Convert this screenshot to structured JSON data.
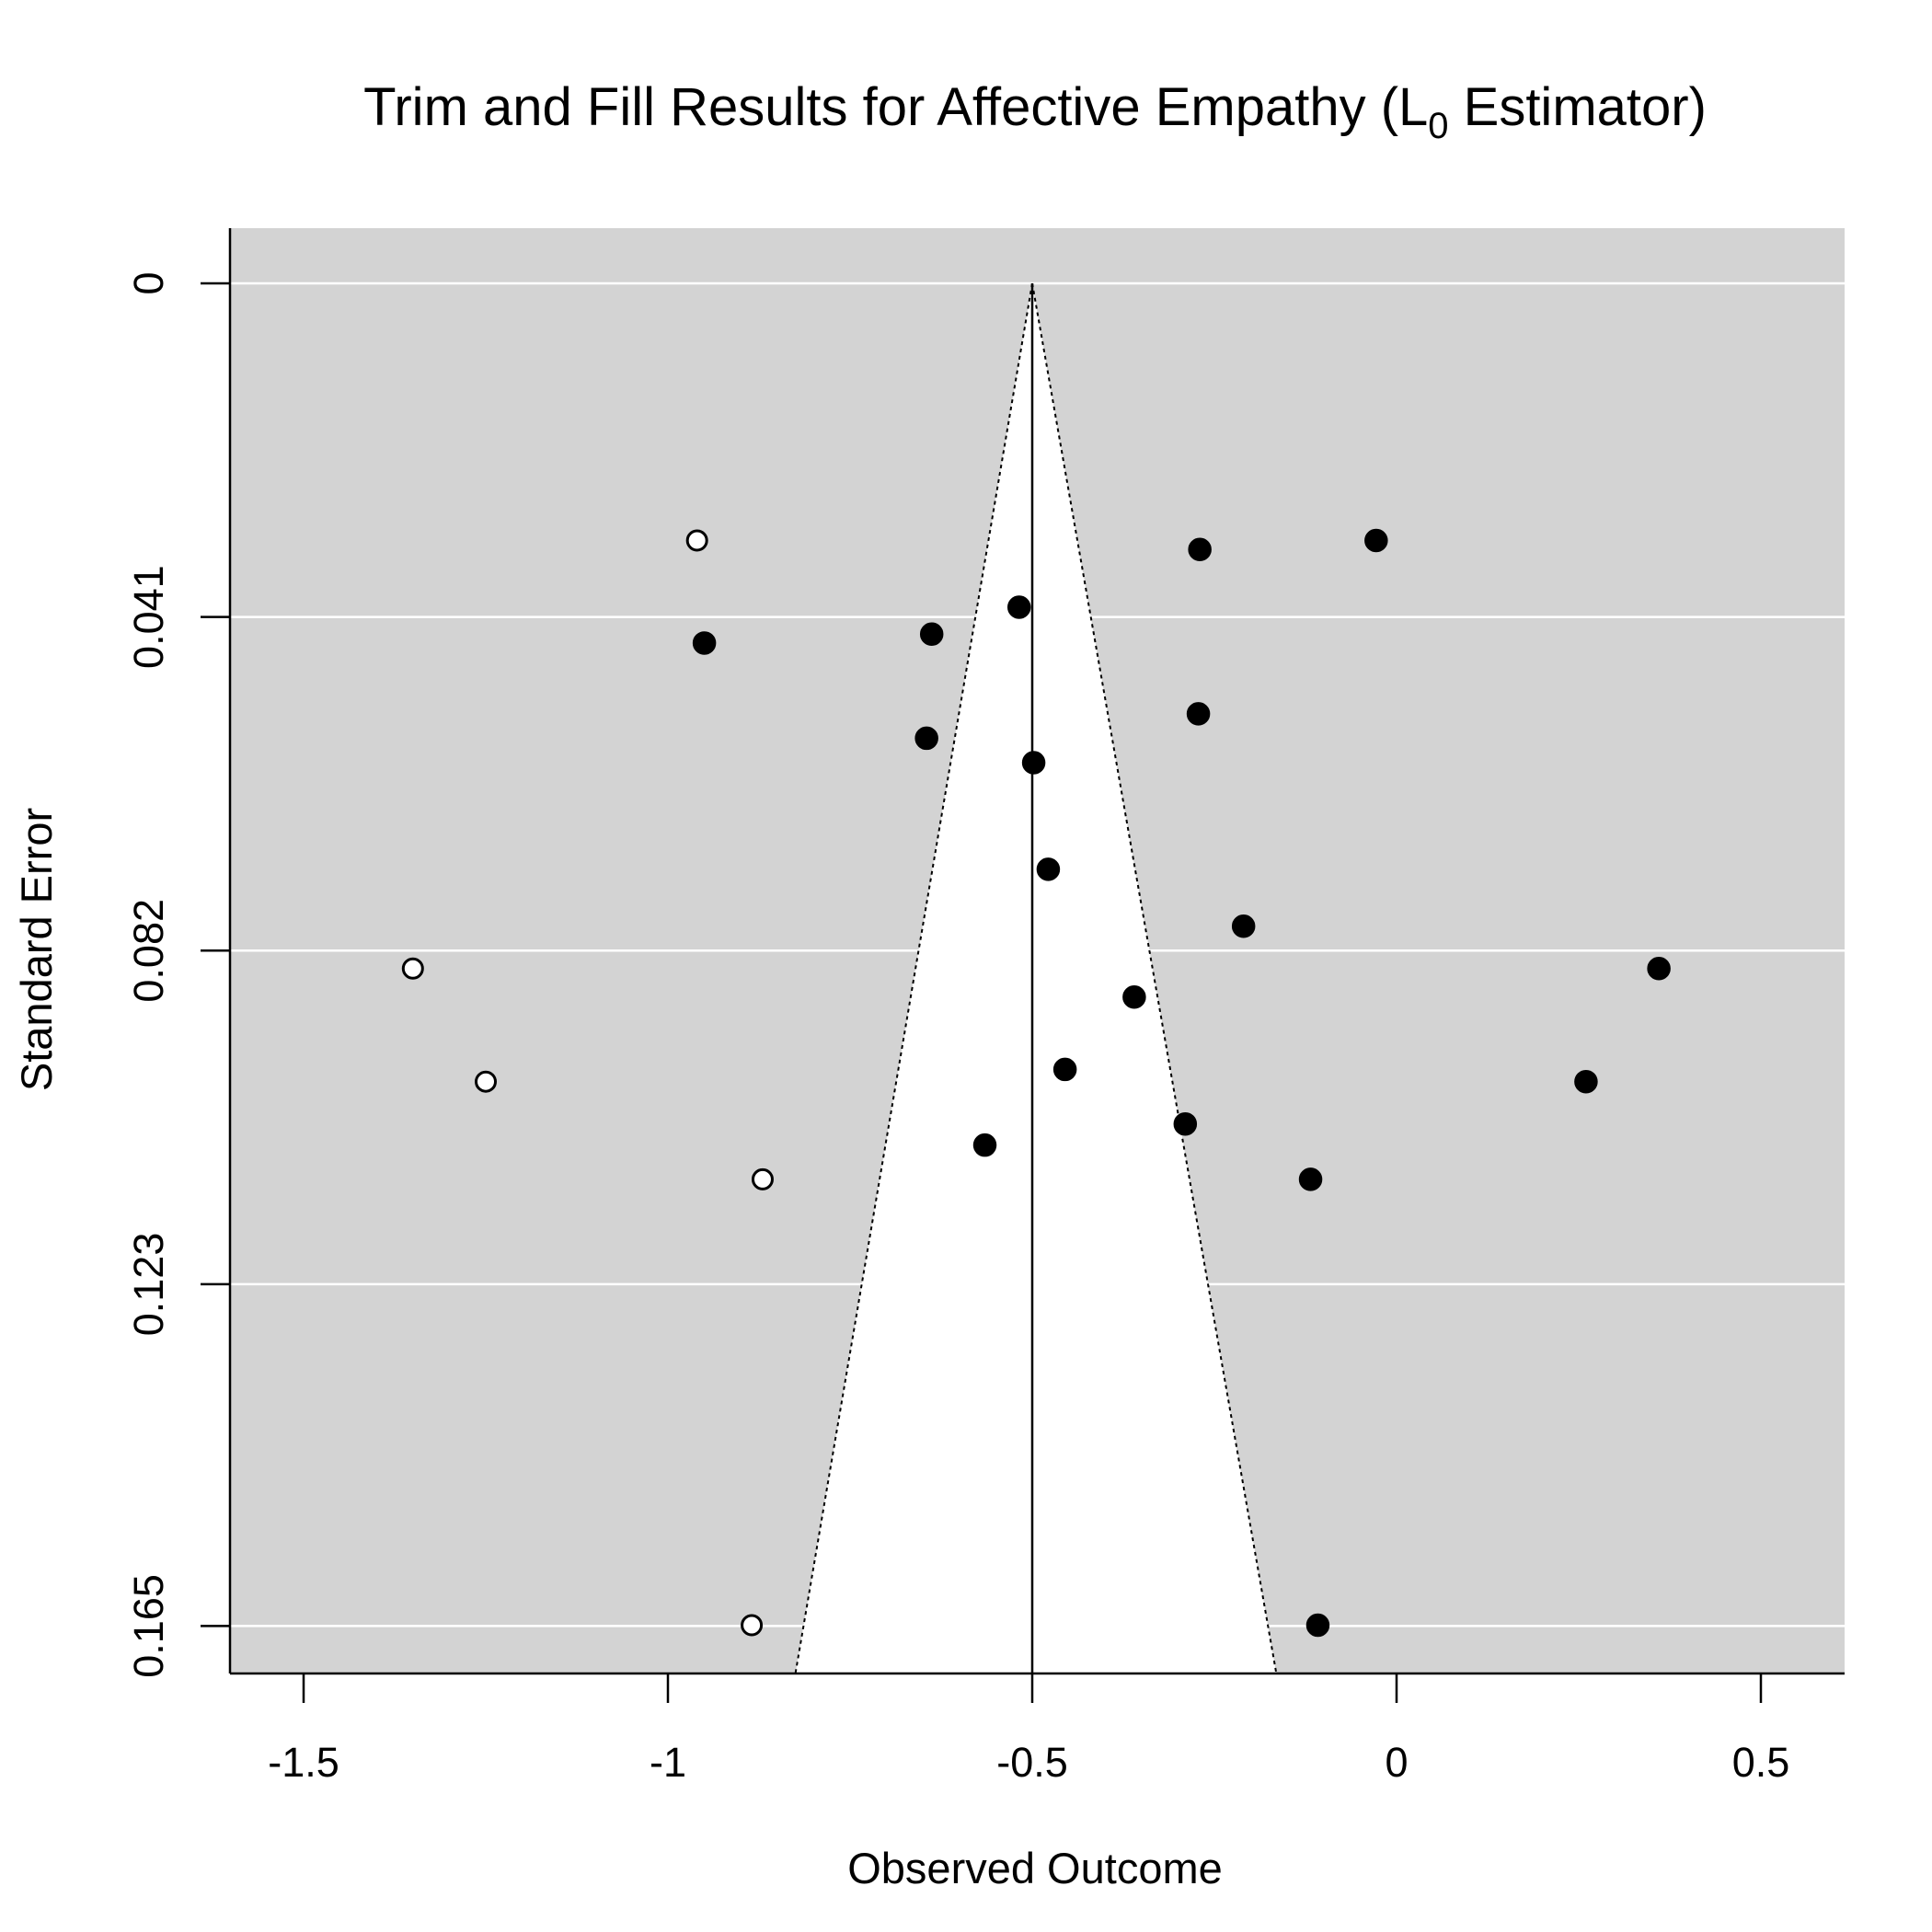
{
  "chart_data": {
    "type": "scatter",
    "subtype": "funnel plot (trim and fill)",
    "title": {
      "prefix": "Trim and Fill Results for Affective Empathy (L",
      "subscript": "0",
      "suffix": " Estimator)"
    },
    "xlabel": "Observed Outcome",
    "ylabel": "Standard Error",
    "xlim": [
      -1.6,
      0.6
    ],
    "ylim": [
      0,
      0.1715
    ],
    "y_reversed": true,
    "x_ticks": [
      {
        "value": -1.5,
        "label": "-1.5"
      },
      {
        "value": -1.0,
        "label": "-1"
      },
      {
        "value": -0.5,
        "label": "-0.5"
      },
      {
        "value": 0.0,
        "label": "0"
      },
      {
        "value": 0.5,
        "label": "0.5"
      }
    ],
    "y_ticks": [
      {
        "value": 0,
        "label": "0"
      },
      {
        "value": 0.041,
        "label": "0.041"
      },
      {
        "value": 0.082,
        "label": "0.082"
      },
      {
        "value": 0.123,
        "label": "0.123"
      },
      {
        "value": 0.165,
        "label": "0.165"
      }
    ],
    "pooled_estimate": -0.5,
    "funnel_bottom_x": [
      -0.825,
      -0.165
    ],
    "colors": {
      "panel_background": "#d3d3d3",
      "funnel_region": "#ffffff",
      "gridline": "#ffffff",
      "observed_point": "#000000",
      "imputed_point_fill": "#ffffff"
    },
    "series": [
      {
        "kind": "observed",
        "marker": "filled-circle",
        "points": [
          {
            "x": -0.27,
            "y": 0.0327
          },
          {
            "x": -0.028,
            "y": 0.0316
          },
          {
            "x": -0.518,
            "y": 0.0398
          },
          {
            "x": -0.638,
            "y": 0.0431
          },
          {
            "x": -0.95,
            "y": 0.0442
          },
          {
            "x": -0.272,
            "y": 0.0529
          },
          {
            "x": -0.645,
            "y": 0.0559
          },
          {
            "x": -0.498,
            "y": 0.0589
          },
          {
            "x": -0.478,
            "y": 0.072
          },
          {
            "x": -0.21,
            "y": 0.079
          },
          {
            "x": 0.36,
            "y": 0.0842
          },
          {
            "x": -0.36,
            "y": 0.0877
          },
          {
            "x": -0.455,
            "y": 0.0966
          },
          {
            "x": 0.26,
            "y": 0.0981
          },
          {
            "x": -0.29,
            "y": 0.1033
          },
          {
            "x": -0.565,
            "y": 0.1059
          },
          {
            "x": -0.118,
            "y": 0.1101
          },
          {
            "x": -0.108,
            "y": 0.1649
          }
        ]
      },
      {
        "kind": "imputed",
        "marker": "open-circle",
        "points": [
          {
            "x": -0.96,
            "y": 0.0316
          },
          {
            "x": -1.35,
            "y": 0.0842
          },
          {
            "x": -1.25,
            "y": 0.0981
          },
          {
            "x": -0.87,
            "y": 0.1101
          },
          {
            "x": -0.885,
            "y": 0.1649
          }
        ]
      }
    ]
  }
}
